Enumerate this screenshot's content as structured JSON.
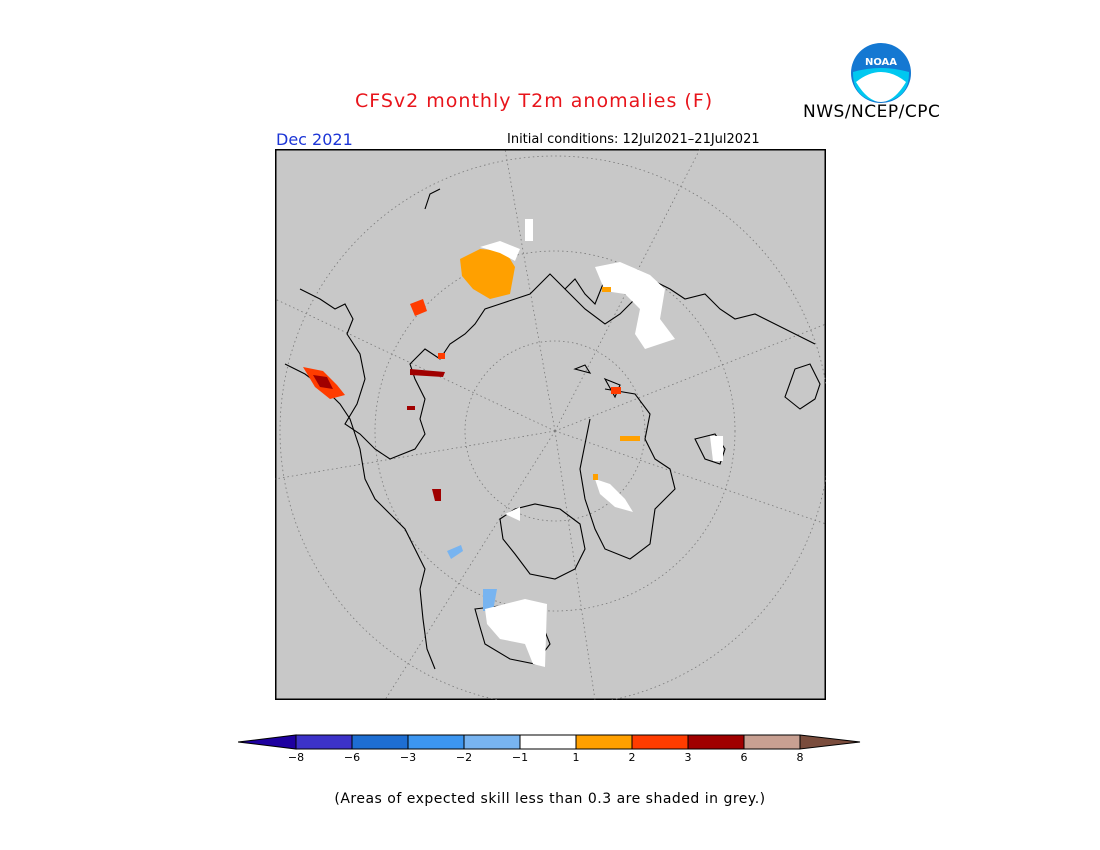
{
  "header": {
    "title": "CFSv2 monthly T2m anomalies (F)",
    "agency": "NWS/NCEP/CPC",
    "month": "Dec 2021",
    "initial_conditions": "Initial conditions: 12Jul2021–21Jul2021"
  },
  "logo": {
    "icon": "noaa-logo-icon",
    "text": "NOAA"
  },
  "map": {
    "projection": "polar stereographic (north)",
    "background_color": "#c8c8c8",
    "skill_mask_color": "#c8c8c8"
  },
  "colorbar": {
    "tick_labels": [
      "−8",
      "−6",
      "−3",
      "−2",
      "−1",
      "1",
      "2",
      "3",
      "6",
      "8"
    ],
    "colors": [
      "#1e00a0",
      "#3c32c8",
      "#1e6ed2",
      "#3c96f0",
      "#78b4f0",
      "#ffffff",
      "#ffa000",
      "#ff3c00",
      "#a00000",
      "#c8a092",
      "#7a4c3c"
    ]
  },
  "footnote": "(Areas of expected skill less than 0.3 are shaded in grey.)"
}
